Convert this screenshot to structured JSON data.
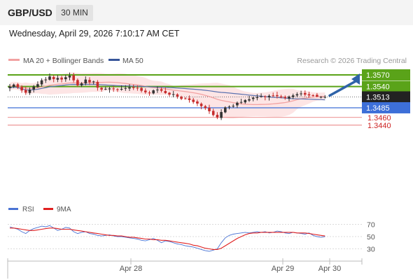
{
  "header": {
    "symbol": "GBP/USD",
    "timeframe": "30 MIN"
  },
  "datetime": "Wednesday, April 29, 2026 7:10:17 AM CET",
  "legend": {
    "ma20_bb": "MA 20 + Bollinger Bands",
    "ma50": "MA 50"
  },
  "copyright": "Research © 2026 Trading Central",
  "rsi_legend": {
    "rsi": "RSI",
    "ma9": "9MA"
  },
  "colors": {
    "resistance": "#5aa319",
    "support": "#3d6fd8",
    "target_red": "#e56a6a",
    "candle_up": "#333333",
    "candle_down": "#c62d2d",
    "bollinger": "#fde0e0",
    "ma20": "#f2a2a2",
    "ma50": "#5b73b0",
    "arrow": "#2f63a8",
    "rsi": "#4a73d4",
    "rsi_ma": "#e02020"
  },
  "chart_data": [
    {
      "type": "candlestick",
      "title": "GBP/USD",
      "timeframe": "30 MIN",
      "x_tick_labels": [
        "Apr 28",
        "Apr 29",
        "Apr 30"
      ],
      "ylim": [
        1.3425,
        1.3595
      ],
      "levels": [
        {
          "label": "1.3570",
          "value": 1.357,
          "kind": "resistance"
        },
        {
          "label": "1.3540",
          "value": 1.354,
          "kind": "resistance"
        },
        {
          "label": "1.3513",
          "value": 1.3513,
          "kind": "last_price"
        },
        {
          "label": "1.3485",
          "value": 1.3485,
          "kind": "support"
        },
        {
          "label": "1.3460",
          "value": 1.346,
          "kind": "target"
        },
        {
          "label": "1.3440",
          "value": 1.344,
          "kind": "target"
        }
      ],
      "closes": [
        1.354,
        1.3545,
        1.3538,
        1.353,
        1.3524,
        1.3532,
        1.354,
        1.3546,
        1.3556,
        1.3558,
        1.3566,
        1.3559,
        1.3562,
        1.3558,
        1.3564,
        1.3568,
        1.3556,
        1.3543,
        1.3548,
        1.3558,
        1.3551,
        1.3553,
        1.3537,
        1.3532,
        1.3534,
        1.3535,
        1.3533,
        1.3532,
        1.3534,
        1.3536,
        1.3538,
        1.3536,
        1.3535,
        1.3529,
        1.3525,
        1.3523,
        1.353,
        1.3532,
        1.3529,
        1.3523,
        1.3519,
        1.352,
        1.3514,
        1.3508,
        1.3509,
        1.3505,
        1.35,
        1.3496,
        1.3489,
        1.3484,
        1.3476,
        1.3466,
        1.346,
        1.3474,
        1.3486,
        1.3488,
        1.349,
        1.3498,
        1.35,
        1.3505,
        1.3507,
        1.3511,
        1.3512,
        1.3515,
        1.3513,
        1.3516,
        1.3517,
        1.3515,
        1.3512,
        1.351,
        1.3514,
        1.3517,
        1.352,
        1.3522,
        1.3519,
        1.3517,
        1.3517,
        1.3514,
        1.3513,
        1.3513
      ],
      "projection": {
        "from": 1.3513,
        "to": 1.357
      },
      "indicators": [
        "MA 20 + Bollinger Bands",
        "MA 50"
      ]
    },
    {
      "type": "line",
      "series": [
        {
          "name": "RSI",
          "values": [
            66,
            64,
            62,
            58,
            55,
            60,
            63,
            65,
            67,
            66,
            68,
            64,
            60,
            62,
            65,
            64,
            58,
            55,
            57,
            58,
            55,
            54,
            52,
            51,
            52,
            53,
            51,
            50,
            50,
            49,
            48,
            47,
            46,
            44,
            43,
            45,
            47,
            44,
            40,
            43,
            42,
            40,
            38,
            37,
            35,
            34,
            33,
            31,
            29,
            27,
            26,
            28,
            30,
            40,
            48,
            52,
            54,
            55,
            56,
            57,
            56,
            57,
            58,
            57,
            58,
            56,
            57,
            59,
            58,
            56,
            55,
            57,
            56,
            55,
            54,
            56,
            52,
            50,
            49,
            50
          ]
        },
        {
          "name": "9MA",
          "values": [
            64,
            64,
            63,
            62,
            61,
            60,
            60,
            61,
            62,
            63,
            64,
            64,
            63,
            62,
            62,
            62,
            61,
            60,
            59,
            58,
            57,
            56,
            55,
            54,
            53,
            52,
            52,
            51,
            51,
            50,
            49,
            49,
            48,
            47,
            46,
            46,
            45,
            45,
            44,
            44,
            43,
            42,
            41,
            40,
            39,
            38,
            36,
            35,
            33,
            31,
            30,
            29,
            29,
            31,
            35,
            39,
            43,
            47,
            50,
            53,
            55,
            56,
            56,
            57,
            57,
            57,
            57,
            57,
            57,
            57,
            57,
            57,
            56,
            56,
            56,
            55,
            54,
            53,
            52,
            51
          ]
        }
      ],
      "ylim": [
        20,
        80
      ],
      "y_tick_labels": [
        "70",
        "50",
        "30"
      ]
    }
  ]
}
